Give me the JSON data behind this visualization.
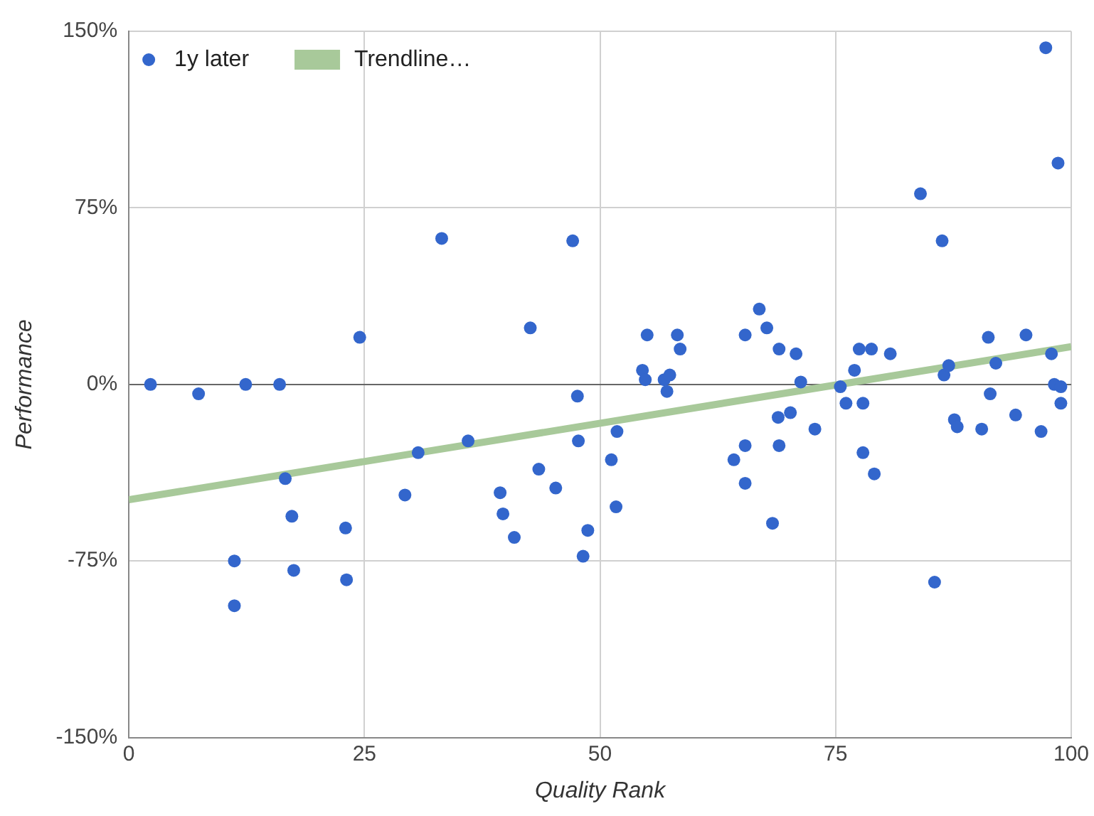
{
  "chart_data": {
    "type": "scatter",
    "xlabel": "Quality Rank",
    "ylabel": "Performance",
    "xlim": [
      0,
      100
    ],
    "xticks": [
      0,
      25,
      50,
      75,
      100
    ],
    "ylim": [
      -150,
      150
    ],
    "yticks": [
      {
        "value": -150,
        "label": "-150%"
      },
      {
        "value": -75,
        "label": "-75%"
      },
      {
        "value": 0,
        "label": "0%"
      },
      {
        "value": 75,
        "label": "75%"
      },
      {
        "value": 150,
        "label": "150%"
      }
    ],
    "grid": true,
    "legend": "top left",
    "marker": "circle",
    "series": [
      {
        "name": "1y later",
        "type": "scatter",
        "color": "#3366cc",
        "x": [
          2.3,
          7.4,
          12.4,
          16,
          11.2,
          11.2,
          16.6,
          17.3,
          17.5,
          23,
          23.1,
          24.5,
          29.3,
          30.7,
          33.2,
          36,
          39.4,
          39.7,
          40.9,
          42.6,
          43.5,
          45.3,
          47.1,
          47.6,
          47.7,
          48.2,
          48.7,
          51.2,
          51.8,
          51.7,
          54.5,
          54.8,
          55,
          56.8,
          57.1,
          57.4,
          58.2,
          58.5,
          64.2,
          65.4,
          65.4,
          65.4,
          66.9,
          67.7,
          68.3,
          68.9,
          69,
          69,
          70.2,
          70.8,
          71.3,
          72.8,
          75.5,
          76.1,
          77,
          77.5,
          77.9,
          77.9,
          78.8,
          79.1,
          80.8,
          84,
          85.5,
          86.3,
          86.5,
          87,
          87.6,
          87.9,
          90.5,
          91.2,
          91.4,
          92,
          94.1,
          95.2,
          96.8,
          97.3,
          97.9,
          98.2,
          98.6,
          98.9,
          98.9
        ],
        "values": [
          0,
          -4,
          0,
          0,
          -75,
          -94,
          -40,
          -56,
          -79,
          -61,
          -83,
          20,
          -47,
          -29,
          62,
          -24,
          -46,
          -55,
          -65,
          24,
          -36,
          -44,
          61,
          -5,
          -24,
          -73,
          -62,
          -32,
          -20,
          -52,
          6,
          2,
          21,
          2,
          -3,
          4,
          21,
          15,
          -32,
          21,
          -26,
          -42,
          32,
          24,
          -59,
          -14,
          15,
          -26,
          -12,
          13,
          1,
          -19,
          -1,
          -8,
          6,
          15,
          -8,
          -29,
          15,
          -38,
          13,
          81,
          -84,
          61,
          4,
          8,
          -15,
          -18,
          -19,
          20,
          -4,
          9,
          -13,
          21,
          -20,
          143,
          13,
          0,
          94,
          -1,
          -8
        ]
      },
      {
        "name": "Trendline…",
        "type": "line",
        "color": "#a8c99a",
        "x": [
          0,
          100
        ],
        "values": [
          -49,
          16
        ],
        "marker": "none"
      }
    ]
  }
}
